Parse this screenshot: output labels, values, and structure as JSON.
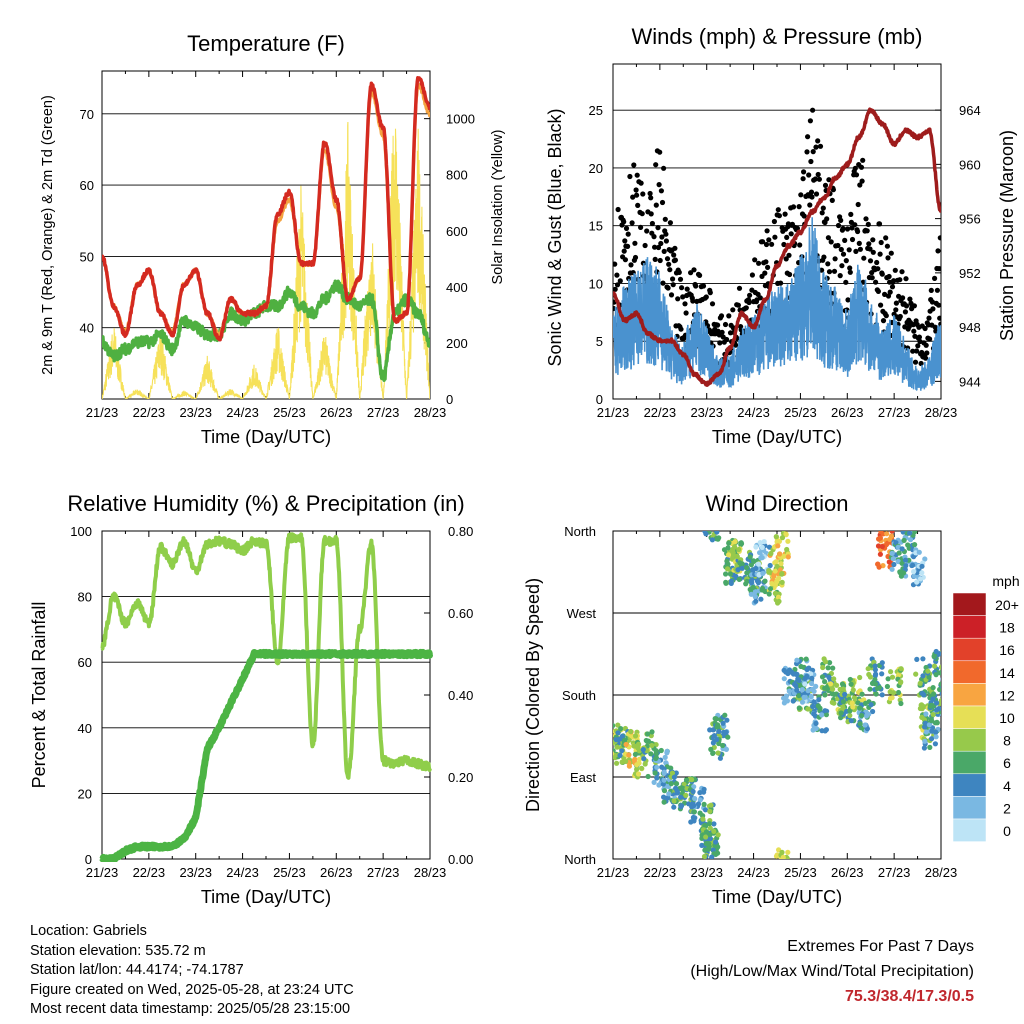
{
  "x_tick_labels": [
    "21/23",
    "22/23",
    "23/23",
    "24/23",
    "25/23",
    "26/23",
    "27/23",
    "28/23"
  ],
  "panels": {
    "temperature": {
      "title": "Temperature (F)",
      "xlabel": "Time (Day/UTC)",
      "ylabel_left": "2m & 9m T (Red, Orange) & 2m Td (Green)",
      "ylabel_right": "Solar Insolation (Yellow)",
      "left_ticks": [
        "40",
        "50",
        "60",
        "70"
      ],
      "right_ticks": [
        "0",
        "200",
        "400",
        "600",
        "800",
        "1000"
      ]
    },
    "winds": {
      "title": "Winds (mph) & Pressure (mb)",
      "xlabel": "Time (Day/UTC)",
      "ylabel_left": "Sonic Wind & Gust (Blue, Black)",
      "ylabel_right": "Station Pressure (Maroon)",
      "left_ticks": [
        "0",
        "5",
        "10",
        "15",
        "20",
        "25"
      ],
      "right_ticks": [
        "944",
        "948",
        "952",
        "956",
        "960",
        "964"
      ]
    },
    "humidity": {
      "title": "Relative Humidity (%) & Precipitation (in)",
      "xlabel": "Time (Day/UTC)",
      "ylabel_left": "Percent & Total Rainfall",
      "left_ticks": [
        "0",
        "20",
        "40",
        "60",
        "80",
        "100"
      ],
      "right_ticks": [
        "0.00",
        "0.20",
        "0.40",
        "0.60",
        "0.80"
      ]
    },
    "direction": {
      "title": "Wind Direction",
      "xlabel": "Time (Day/UTC)",
      "ylabel_left": "Direction (Colored By Speed)",
      "left_ticks": [
        "North",
        "East",
        "South",
        "West",
        "North"
      ],
      "legend_title": "mph",
      "legend_labels": [
        "20+",
        "18",
        "16",
        "14",
        "12",
        "10",
        "8",
        "6",
        "4",
        "2",
        "0"
      ],
      "legend_colors": [
        "#a3181c",
        "#cc2027",
        "#e2412a",
        "#f1692c",
        "#f8a541",
        "#e6df56",
        "#97c94b",
        "#4aa868",
        "#3e85c0",
        "#7ab8e2",
        "#bde4f6"
      ]
    }
  },
  "info": {
    "location": "Location: Gabriels",
    "elevation": "Station elevation: 535.72 m",
    "latlon": "Station lat/lon: 44.4174; -74.1787",
    "created": "Figure created on Wed, 2025-05-28, at 23:24 UTC",
    "recent": "Most recent data timestamp: 2025/05/28 23:15:00"
  },
  "extremes": {
    "line1": "Extremes For Past 7 Days",
    "line2": "(High/Low/Max Wind/Total Precipitation)",
    "values": "75.3/38.4/17.3/0.5"
  },
  "colors": {
    "temp_2m": "#d42a20",
    "temp_9m": "#f4a340",
    "dewpoint": "#4fb041",
    "solar": "#f6e15a",
    "wind": "#4a92cf",
    "gust": "#000000",
    "pressure": "#9e1c1c",
    "rh": "#8fce4a",
    "precip": "#4cb444"
  },
  "chart_data": [
    {
      "type": "line",
      "title": "Temperature (F)",
      "xlabel": "Time (Day/UTC)",
      "ylabel": "2m & 9m T (Red, Orange) & 2m Td (Green)",
      "y2label": "Solar Insolation (Yellow)",
      "x": [
        0,
        0.25,
        0.5,
        0.75,
        1,
        1.25,
        1.5,
        1.75,
        2,
        2.25,
        2.5,
        2.75,
        3,
        3.25,
        3.5,
        3.75,
        4,
        4.25,
        4.5,
        4.75,
        5,
        5.25,
        5.5,
        5.75,
        6,
        6.25,
        6.5,
        6.75,
        7
      ],
      "ylim": [
        30,
        76
      ],
      "y2lim": [
        0,
        1170
      ],
      "series": [
        {
          "name": "2m T",
          "axis": "left",
          "values": [
            50,
            43,
            39,
            46,
            48,
            42,
            39,
            46,
            48,
            42,
            38.5,
            44,
            42,
            42,
            43,
            56,
            59,
            49,
            49,
            66,
            58,
            44,
            47,
            74,
            68,
            41,
            42,
            75,
            71
          ]
        },
        {
          "name": "9m T",
          "axis": "left",
          "values": [
            50,
            43,
            39.5,
            46,
            48,
            42,
            39.5,
            46,
            48,
            42,
            39,
            44,
            42,
            42,
            43,
            55,
            58,
            49,
            49,
            65,
            57,
            44,
            47,
            73,
            67,
            41,
            42,
            74,
            70
          ]
        },
        {
          "name": "2m Td",
          "axis": "left",
          "values": [
            38,
            36,
            37,
            38,
            38,
            39,
            37,
            41,
            40,
            39,
            39,
            42,
            41,
            42,
            43,
            43,
            45,
            43,
            42,
            44,
            46,
            44,
            43,
            44,
            33,
            42,
            44,
            42,
            38
          ]
        },
        {
          "name": "Solar",
          "axis": "right",
          "values": [
            0,
            280,
            0,
            40,
            0,
            260,
            0,
            30,
            0,
            160,
            0,
            40,
            0,
            130,
            0,
            280,
            0,
            800,
            0,
            250,
            0,
            1000,
            0,
            650,
            0,
            1150,
            0,
            1000,
            0
          ]
        }
      ]
    },
    {
      "type": "line",
      "title": "Winds (mph) & Pressure (mb)",
      "xlabel": "Time (Day/UTC)",
      "ylabel": "Sonic Wind & Gust (Blue, Black)",
      "y2label": "Station Pressure (Maroon)",
      "x": [
        0,
        0.25,
        0.5,
        0.75,
        1,
        1.25,
        1.5,
        1.75,
        2,
        2.25,
        2.5,
        2.75,
        3,
        3.25,
        3.5,
        3.75,
        4,
        4.25,
        4.5,
        4.75,
        5,
        5.25,
        5.5,
        5.75,
        6,
        6.25,
        6.5,
        6.75,
        7
      ],
      "ylim": [
        0,
        29
      ],
      "y2lim": [
        942.7,
        967.4
      ],
      "series": [
        {
          "name": "Sonic Wind",
          "axis": "left",
          "values": [
            6,
            8,
            9,
            10,
            9,
            5,
            4,
            7,
            5,
            3,
            3,
            5,
            6,
            7,
            8,
            8,
            10,
            13,
            9,
            8,
            6,
            10,
            7,
            5,
            6,
            4,
            2,
            3,
            6
          ]
        },
        {
          "name": "Gust",
          "axis": "left",
          "values": [
            12,
            18,
            17,
            14,
            19,
            12,
            8,
            10,
            9,
            6,
            6,
            9,
            11,
            12,
            14,
            14,
            16,
            22,
            17,
            15,
            13,
            19,
            15,
            12,
            11,
            9,
            6,
            7,
            12
          ]
        },
        {
          "name": "Station Pressure",
          "axis": "right",
          "values": [
            950.5,
            948.5,
            949,
            947.5,
            947,
            947,
            946,
            944.5,
            943.8,
            944.5,
            946.5,
            949,
            948,
            950,
            952.5,
            954,
            955,
            956.5,
            957.5,
            959,
            960,
            962,
            964,
            963,
            961.5,
            962.5,
            962,
            962.5,
            956.5
          ]
        }
      ]
    },
    {
      "type": "line",
      "title": "Relative Humidity (%) & Precipitation (in)",
      "xlabel": "Time (Day/UTC)",
      "ylabel": "Percent & Total Rainfall",
      "x": [
        0,
        0.25,
        0.5,
        0.75,
        1,
        1.25,
        1.5,
        1.75,
        2,
        2.25,
        2.5,
        2.75,
        3,
        3.25,
        3.5,
        3.75,
        4,
        4.25,
        4.5,
        4.75,
        5,
        5.25,
        5.5,
        5.75,
        6,
        6.25,
        6.5,
        6.75,
        7
      ],
      "ylim": [
        0,
        100
      ],
      "y2lim": [
        0,
        0.8
      ],
      "series": [
        {
          "name": "RH",
          "axis": "left",
          "values": [
            65,
            80,
            72,
            78,
            72,
            95,
            90,
            97,
            88,
            96,
            97,
            96,
            94,
            97,
            96,
            60,
            98,
            98,
            35,
            97,
            97,
            25,
            70,
            96,
            30,
            29,
            30,
            29,
            28
          ]
        },
        {
          "name": "Total Rainfall",
          "axis": "right",
          "values": [
            0,
            0,
            0.02,
            0.03,
            0.03,
            0.03,
            0.03,
            0.05,
            0.1,
            0.27,
            0.32,
            0.38,
            0.44,
            0.5,
            0.5,
            0.5,
            0.5,
            0.5,
            0.5,
            0.5,
            0.5,
            0.5,
            0.5,
            0.5,
            0.5,
            0.5,
            0.5,
            0.5,
            0.5
          ]
        }
      ]
    },
    {
      "type": "scatter",
      "title": "Wind Direction",
      "xlabel": "Time (Day/UTC)",
      "ylabel": "Direction (Colored By Speed)",
      "ylim": [
        0,
        360
      ],
      "x": [
        0.05,
        0.2,
        0.4,
        0.6,
        0.8,
        1.0,
        1.2,
        1.4,
        1.6,
        1.8,
        2.0,
        2.05,
        2.1,
        2.2,
        2.3,
        2.5,
        2.6,
        2.8,
        3.0,
        3.1,
        3.2,
        3.4,
        3.5,
        3.6,
        3.8,
        4.0,
        4.1,
        4.2,
        4.4,
        4.6,
        4.8,
        5.0,
        5.2,
        5.4,
        5.6,
        5.8,
        6.0,
        6.1,
        6.3,
        6.5,
        6.6,
        6.7,
        6.8,
        6.9,
        7.0
      ],
      "y": [
        130,
        125,
        120,
        110,
        120,
        100,
        80,
        75,
        70,
        60,
        40,
        20,
        10,
        130,
        140,
        320,
        330,
        320,
        315,
        300,
        330,
        300,
        320,
        350,
        190,
        200,
        180,
        190,
        160,
        200,
        180,
        170,
        180,
        160,
        200,
        340,
        190,
        330,
        340,
        320,
        200,
        150,
        140,
        170,
        210
      ],
      "speed": [
        8,
        6,
        10,
        8,
        6,
        4,
        4,
        6,
        6,
        4,
        6,
        6,
        6,
        6,
        4,
        6,
        8,
        6,
        6,
        4,
        2,
        8,
        10,
        10,
        4,
        4,
        6,
        2,
        4,
        6,
        8,
        6,
        8,
        4,
        6,
        14,
        8,
        4,
        4,
        2,
        6,
        8,
        4,
        6,
        6
      ]
    }
  ]
}
